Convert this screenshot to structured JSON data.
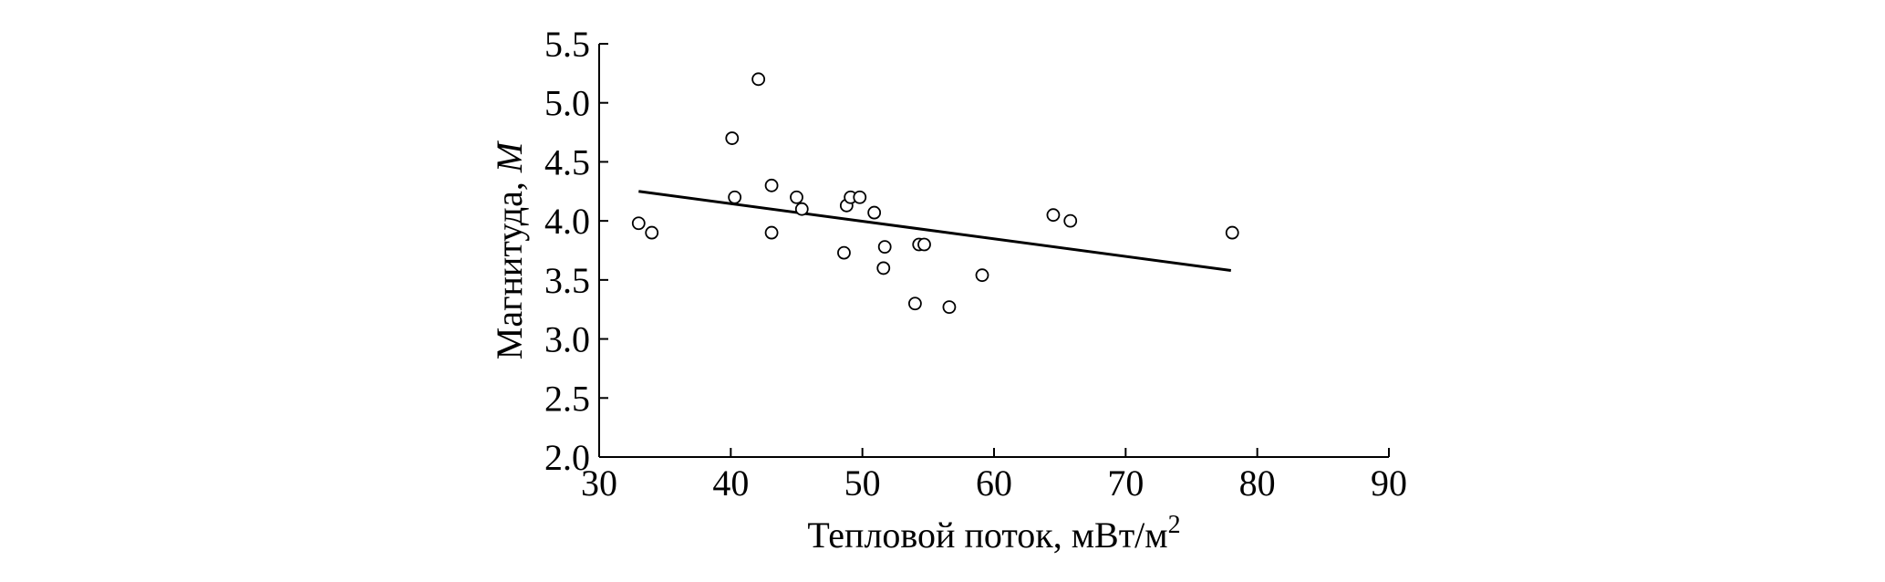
{
  "chart_data": {
    "type": "scatter",
    "xlabel": "Тепловой поток, мВт/м",
    "xlabel_sup": "2",
    "ylabel": "Магнитуда, ",
    "ylabel_italic": "M",
    "xlim": [
      30,
      90
    ],
    "ylim": [
      2.0,
      5.5
    ],
    "xticks": [
      "30",
      "40",
      "50",
      "60",
      "70",
      "80",
      "90"
    ],
    "yticks": [
      "2.0",
      "2.5",
      "3.0",
      "3.5",
      "4.0",
      "4.5",
      "5.0",
      "5.5"
    ],
    "grid": false,
    "marker": "open-circle",
    "points": [
      [
        33.0,
        3.98
      ],
      [
        34.0,
        3.9
      ],
      [
        40.1,
        4.7
      ],
      [
        40.3,
        4.2
      ],
      [
        42.1,
        5.2
      ],
      [
        43.1,
        4.3
      ],
      [
        43.1,
        3.9
      ],
      [
        45.0,
        4.2
      ],
      [
        45.4,
        4.1
      ],
      [
        48.6,
        3.73
      ],
      [
        48.8,
        4.13
      ],
      [
        49.1,
        4.2
      ],
      [
        49.8,
        4.2
      ],
      [
        50.9,
        4.07
      ],
      [
        51.6,
        3.6
      ],
      [
        51.7,
        3.78
      ],
      [
        54.3,
        3.8
      ],
      [
        54.7,
        3.8
      ],
      [
        54.0,
        3.3
      ],
      [
        56.6,
        3.27
      ],
      [
        59.1,
        3.54
      ],
      [
        64.5,
        4.05
      ],
      [
        65.8,
        4.0
      ],
      [
        78.1,
        3.9
      ]
    ],
    "trendline": [
      [
        33.0,
        4.25
      ],
      [
        78.0,
        3.58
      ]
    ]
  }
}
